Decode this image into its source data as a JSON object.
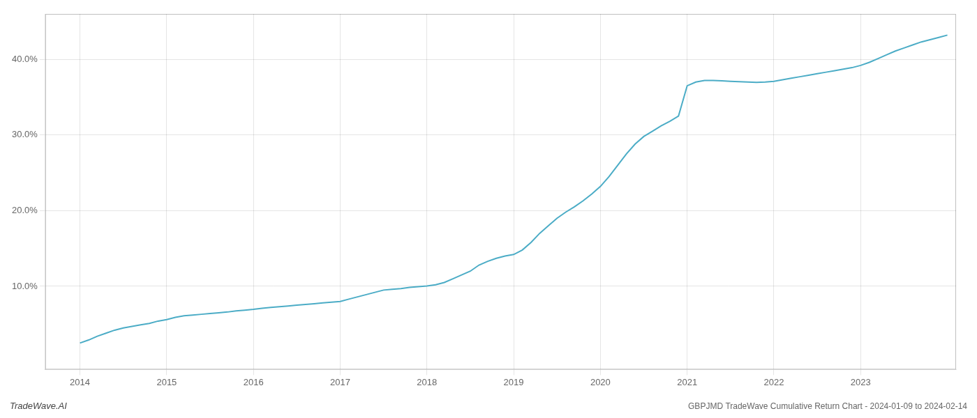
{
  "chart_data": {
    "type": "line",
    "title": "GBPJMD TradeWave Cumulative Return Chart - 2024-01-09 to 2024-02-14",
    "annotations": [
      "TradeWave.AI"
    ],
    "color": "#4bacc6",
    "x": [
      2014.0,
      2014.1,
      2014.2,
      2014.3,
      2014.4,
      2014.5,
      2014.6,
      2014.7,
      2014.8,
      2014.9,
      2015.0,
      2015.1,
      2015.2,
      2015.3,
      2015.4,
      2015.5,
      2015.6,
      2015.7,
      2015.8,
      2015.9,
      2016.0,
      2016.1,
      2016.2,
      2016.3,
      2016.4,
      2016.5,
      2016.6,
      2016.7,
      2016.8,
      2016.9,
      2017.0,
      2017.1,
      2017.2,
      2017.3,
      2017.4,
      2017.5,
      2017.6,
      2017.7,
      2017.8,
      2017.9,
      2018.0,
      2018.1,
      2018.2,
      2018.3,
      2018.4,
      2018.5,
      2018.6,
      2018.7,
      2018.8,
      2018.9,
      2019.0,
      2019.1,
      2019.2,
      2019.3,
      2019.4,
      2019.5,
      2019.6,
      2019.7,
      2019.8,
      2019.9,
      2020.0,
      2020.1,
      2020.2,
      2020.3,
      2020.4,
      2020.5,
      2020.6,
      2020.7,
      2020.8,
      2020.9,
      2021.0,
      2021.1,
      2021.2,
      2021.3,
      2021.4,
      2021.5,
      2021.6,
      2021.7,
      2021.8,
      2021.9,
      2022.0,
      2022.1,
      2022.2,
      2022.3,
      2022.4,
      2022.5,
      2022.6,
      2022.7,
      2022.8,
      2022.9,
      2023.0,
      2023.1,
      2023.2,
      2023.3,
      2023.4,
      2023.5,
      2023.6,
      2023.7,
      2023.8,
      2023.9,
      2024.0
    ],
    "values": [
      2.5,
      2.9,
      3.4,
      3.8,
      4.2,
      4.5,
      4.7,
      4.9,
      5.1,
      5.4,
      5.6,
      5.9,
      6.1,
      6.2,
      6.3,
      6.4,
      6.5,
      6.6,
      6.75,
      6.85,
      6.95,
      7.1,
      7.2,
      7.3,
      7.4,
      7.5,
      7.6,
      7.7,
      7.8,
      7.9,
      8.0,
      8.3,
      8.6,
      8.9,
      9.2,
      9.5,
      9.6,
      9.7,
      9.85,
      9.95,
      10.05,
      10.2,
      10.5,
      11.0,
      11.5,
      12.0,
      12.8,
      13.3,
      13.7,
      14.0,
      14.2,
      14.8,
      15.8,
      17.0,
      18.0,
      19.0,
      19.8,
      20.5,
      21.3,
      22.2,
      23.2,
      24.5,
      26.0,
      27.5,
      28.8,
      29.8,
      30.5,
      31.2,
      31.8,
      32.5,
      36.5,
      37.0,
      37.2,
      37.2,
      37.15,
      37.1,
      37.05,
      37.0,
      36.95,
      37.0,
      37.1,
      37.3,
      37.5,
      37.7,
      37.9,
      38.1,
      38.3,
      38.5,
      38.7,
      38.9,
      39.2,
      39.6,
      40.1,
      40.6,
      41.1,
      41.5,
      41.9,
      42.3,
      42.6,
      42.9,
      43.2
    ],
    "xlim": [
      2013.6,
      2024.1
    ],
    "xticks": [
      2014,
      2015,
      2016,
      2017,
      2018,
      2019,
      2020,
      2021,
      2022,
      2023
    ],
    "ylim": [
      -1,
      46
    ],
    "yticks": [
      {
        "value": 10,
        "label": "10.0%"
      },
      {
        "value": 20,
        "label": "20.0%"
      },
      {
        "value": 30,
        "label": "30.0%"
      },
      {
        "value": 40,
        "label": "40.0%"
      }
    ],
    "grid": true
  }
}
